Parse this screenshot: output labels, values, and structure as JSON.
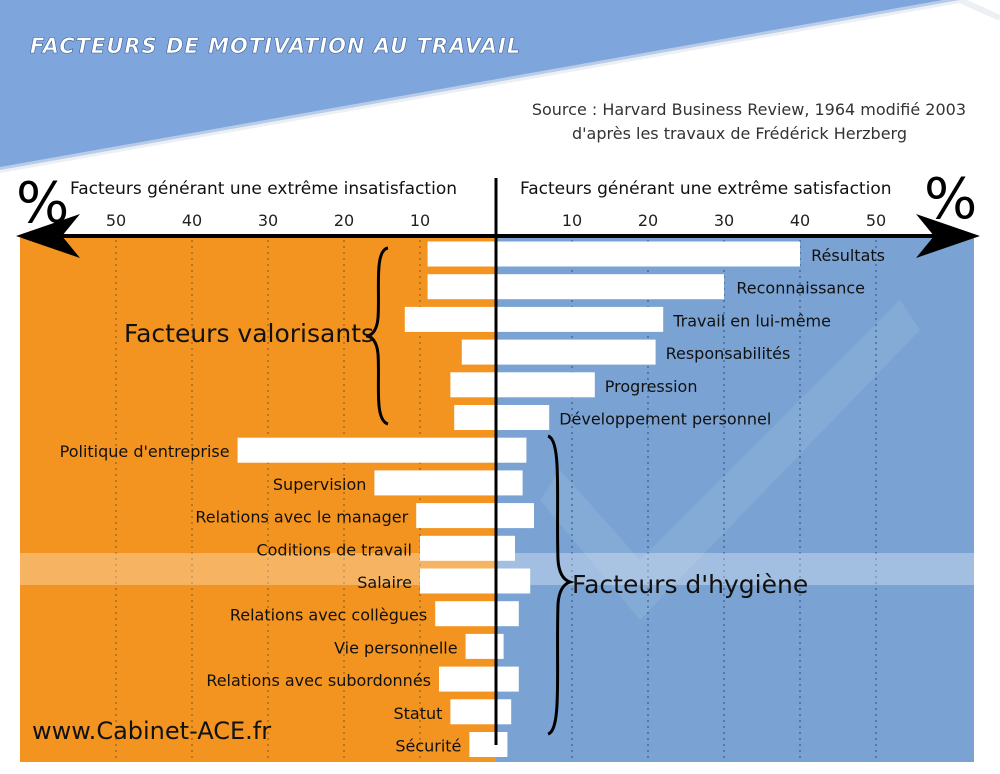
{
  "header": {
    "title": "FACTEURS DE MOTIVATION AU TRAVAIL",
    "source_line1": "Source : Harvard Business Review, 1964 modifié 2003",
    "source_line2": "d'après les travaux de Frédérick Herzberg"
  },
  "colors": {
    "left_bg": "#f39420",
    "right_bg": "#7aa3d3",
    "banner": "#7fa6dc",
    "bar": "#ffffff",
    "highlight": "#ffffff",
    "axis": "#000000"
  },
  "labels": {
    "percent_left": "%",
    "percent_right": "%",
    "left_axis_title": "Facteurs générant une extrême insatisfaction",
    "right_axis_title": "Facteurs générant une extrême satisfaction",
    "group_motivators": "Facteurs valorisants",
    "group_hygiene": "Facteurs d'hygiène",
    "website": "www.Cabinet-ACE.fr"
  },
  "chart_data": {
    "type": "bar",
    "orientation": "horizontal-diverging",
    "left_axis": {
      "title": "Facteurs générant une extrême insatisfaction",
      "ticks": [
        10,
        20,
        30,
        40,
        50
      ],
      "range": [
        0,
        50
      ]
    },
    "right_axis": {
      "title": "Facteurs générant une extrême satisfaction",
      "ticks": [
        10,
        20,
        30,
        40,
        50
      ],
      "range": [
        0,
        50
      ]
    },
    "grid": true,
    "highlighted_category": "Salaire",
    "categories": [
      "Résultats",
      "Reconnaissance",
      "Travail en lui-même",
      "Responsabilités",
      "Progression",
      "Développement personnel",
      "Politique d'entreprise",
      "Supervision",
      "Relations avec le manager",
      "Coditions de travail",
      "Salaire",
      "Relations avec collègues",
      "Vie personnelle",
      "Relations avec subordonnés",
      "Statut",
      "Sécurité"
    ],
    "series": [
      {
        "values": [
          9,
          9,
          12,
          4.5,
          6,
          5.5,
          34,
          16,
          10.5,
          10,
          10,
          8,
          4,
          7.5,
          6,
          3.5
        ]
      },
      {
        "values": [
          40,
          30,
          22,
          21,
          13,
          7,
          4,
          3.5,
          5,
          2.5,
          4.5,
          3,
          1,
          3,
          2,
          1.5
        ]
      }
    ]
  }
}
